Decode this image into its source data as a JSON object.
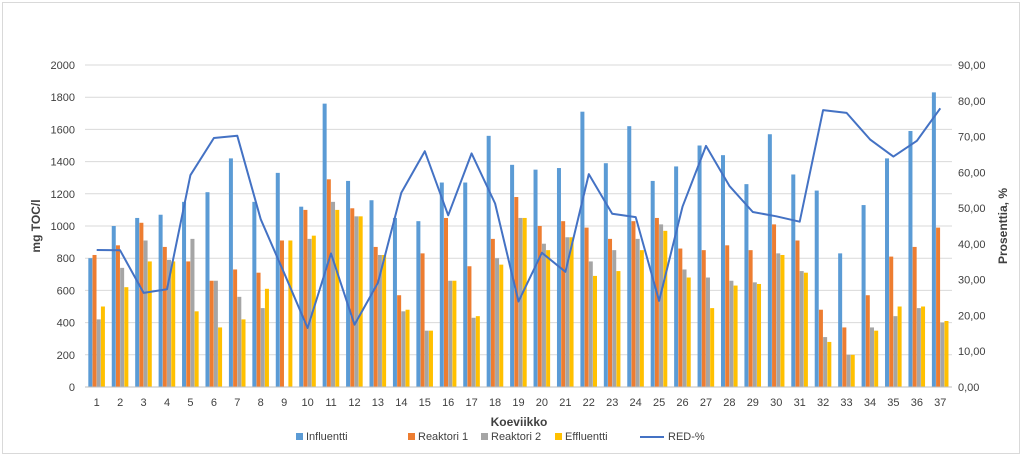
{
  "chart_data": {
    "type": "bar+line",
    "xlabel": "Koeviikko",
    "ylabel": "mg TOC/l",
    "y2label": "Prosenttia, %",
    "ylim": [
      0,
      2000
    ],
    "y2lim": [
      0,
      90
    ],
    "yticks": [
      "0",
      "200",
      "400",
      "600",
      "800",
      "1000",
      "1200",
      "1400",
      "1600",
      "1800",
      "2000"
    ],
    "y2ticks": [
      "0,00",
      "10,00",
      "20,00",
      "30,00",
      "40,00",
      "50,00",
      "60,00",
      "70,00",
      "80,00",
      "90,00"
    ],
    "grid": "horizontal",
    "legend_position": "bottom",
    "categories": [
      "1",
      "2",
      "3",
      "4",
      "5",
      "6",
      "7",
      "8",
      "9",
      "10",
      "11",
      "12",
      "13",
      "14",
      "15",
      "16",
      "17",
      "18",
      "19",
      "20",
      "21",
      "22",
      "23",
      "24",
      "25",
      "26",
      "27",
      "28",
      "29",
      "30",
      "31",
      "32",
      "33",
      "34",
      "35",
      "36",
      "37"
    ],
    "series": [
      {
        "name": "Influentti",
        "color": "#5b9bd5",
        "kind": "bar",
        "values": [
          800,
          1000,
          1050,
          1070,
          1150,
          1210,
          1420,
          1150,
          1330,
          1120,
          1760,
          1280,
          1160,
          1050,
          1030,
          1270,
          1270,
          1560,
          1380,
          1350,
          1360,
          1710,
          1390,
          1620,
          1280,
          1370,
          1500,
          1440,
          1260,
          1570,
          1320,
          1220,
          830,
          1130,
          1420,
          1590,
          1830
        ]
      },
      {
        "name": "Reaktori 1",
        "color": "#ed7d31",
        "kind": "bar",
        "values": [
          820,
          880,
          1020,
          870,
          780,
          660,
          730,
          710,
          910,
          1100,
          1290,
          1110,
          870,
          570,
          830,
          1050,
          750,
          920,
          1180,
          1000,
          1030,
          990,
          920,
          1030,
          1050,
          860,
          850,
          880,
          850,
          1010,
          910,
          480,
          370,
          570,
          810,
          870,
          990
        ]
      },
      {
        "name": "Reaktori 2",
        "color": "#a5a5a5",
        "kind": "bar",
        "values": [
          420,
          740,
          910,
          790,
          920,
          660,
          560,
          490,
          0,
          920,
          1150,
          1060,
          820,
          470,
          350,
          660,
          430,
          800,
          1050,
          890,
          930,
          780,
          850,
          920,
          1010,
          730,
          680,
          660,
          650,
          830,
          720,
          310,
          200,
          370,
          440,
          490,
          400
        ]
      },
      {
        "name": "Effluentti",
        "color": "#ffc000",
        "kind": "bar",
        "values": [
          500,
          620,
          780,
          780,
          470,
          370,
          420,
          610,
          910,
          940,
          1100,
          1060,
          820,
          480,
          350,
          660,
          440,
          760,
          1050,
          850,
          930,
          690,
          720,
          850,
          970,
          680,
          490,
          630,
          640,
          820,
          710,
          280,
          200,
          350,
          500,
          500,
          410
        ]
      },
      {
        "name": "RED-%",
        "color": "#4472c4",
        "kind": "line",
        "values": [
          38.3,
          38.2,
          26.3,
          27.3,
          59.2,
          69.6,
          70.2,
          46.9,
          31.8,
          16.5,
          37.3,
          17.4,
          29.1,
          54.3,
          65.9,
          48.0,
          65.3,
          51.3,
          23.9,
          37.5,
          32.2,
          59.5,
          48.4,
          47.5,
          24.1,
          50.4,
          67.4,
          56.2,
          48.9,
          47.7,
          46.2,
          77.4,
          76.6,
          69.2,
          64.4,
          68.8,
          77.9
        ]
      }
    ]
  }
}
